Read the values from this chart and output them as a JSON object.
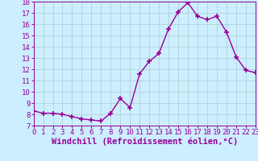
{
  "x": [
    0,
    1,
    2,
    3,
    4,
    5,
    6,
    7,
    8,
    9,
    10,
    11,
    12,
    13,
    14,
    15,
    16,
    17,
    18,
    19,
    20,
    21,
    22,
    23
  ],
  "y": [
    8.3,
    8.1,
    8.1,
    8.0,
    7.8,
    7.6,
    7.5,
    7.4,
    8.1,
    9.4,
    8.6,
    11.6,
    12.7,
    13.4,
    15.6,
    17.1,
    17.9,
    16.7,
    16.4,
    16.7,
    15.3,
    13.1,
    11.9,
    11.7
  ],
  "line_color": "#990099",
  "marker": "+",
  "marker_size": 4,
  "bg_color": "#cceeff",
  "grid_color": "#aacccc",
  "xlabel": "Windchill (Refroidissement éolien,°C)",
  "xlabel_fontsize": 7.5,
  "ylim": [
    7,
    18
  ],
  "yticks": [
    7,
    8,
    9,
    10,
    11,
    12,
    13,
    14,
    15,
    16,
    17,
    18
  ],
  "xticks": [
    0,
    1,
    2,
    3,
    4,
    5,
    6,
    7,
    8,
    9,
    10,
    11,
    12,
    13,
    14,
    15,
    16,
    17,
    18,
    19,
    20,
    21,
    22,
    23
  ],
  "tick_fontsize": 6.5,
  "line_width": 1.0
}
